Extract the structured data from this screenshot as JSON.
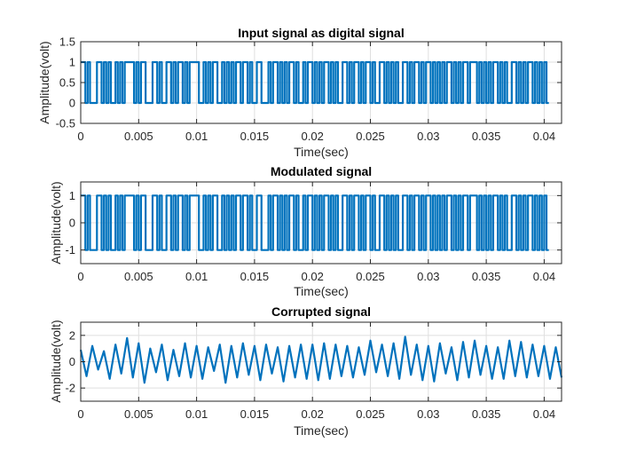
{
  "figure": {
    "background": "#ffffff"
  },
  "chart_data": [
    {
      "type": "line",
      "title": "Input signal as digital signal",
      "xlabel": "Time(sec)",
      "ylabel": "Amplitude(volt)",
      "xlim": [
        0,
        0.0415
      ],
      "ylim": [
        -0.5,
        1.5
      ],
      "xticks": [
        0,
        0.005,
        0.01,
        0.015,
        0.02,
        0.025,
        0.03,
        0.035,
        0.04
      ],
      "xtick_labels": [
        "0",
        "0.005",
        "0.01",
        "0.015",
        "0.02",
        "0.025",
        "0.03",
        "0.035",
        "0.04"
      ],
      "yticks": [
        -0.5,
        0,
        0.5,
        1,
        1.5
      ],
      "ytick_labels": [
        "-0.5",
        "0",
        "0.5",
        "1",
        "1.5"
      ],
      "grid": true,
      "color": "#0072BD",
      "series": [
        {
          "signal": "binary",
          "bit_period": 0.0002,
          "levels": [
            0,
            1
          ],
          "bits": "1101000110101001010111101011000110100110101101011110010101100101010110110100110001011010101101001011010101101010011010110101101001101010100110101101011010101011010101101110101010110101001101010110101010"
        }
      ]
    },
    {
      "type": "line",
      "title": "Modulated signal",
      "xlabel": "Time(sec)",
      "ylabel": "Amplitude(volt)",
      "xlim": [
        0,
        0.0415
      ],
      "ylim": [
        -1.5,
        1.5
      ],
      "xticks": [
        0,
        0.005,
        0.01,
        0.015,
        0.02,
        0.025,
        0.03,
        0.035,
        0.04
      ],
      "xtick_labels": [
        "0",
        "0.005",
        "0.01",
        "0.015",
        "0.02",
        "0.025",
        "0.03",
        "0.035",
        "0.04"
      ],
      "yticks": [
        -1,
        0,
        1
      ],
      "ytick_labels": [
        "-1",
        "0",
        "1"
      ],
      "grid": true,
      "color": "#0072BD",
      "series": [
        {
          "signal": "bipolar",
          "bit_period": 0.0002,
          "levels": [
            -1,
            1
          ],
          "bits": "1101000110101001010111101011000110100110101101011110010101100101010110110100110001011010101101001011010101101010011010110101101001101010100110101101011010101011010101101110101010110101001101010110101010"
        }
      ]
    },
    {
      "type": "line",
      "title": "Corrupted signal",
      "xlabel": "Time(sec)",
      "ylabel": "Amplitude(volt)",
      "xlim": [
        0,
        0.0415
      ],
      "ylim": [
        -3,
        3
      ],
      "xticks": [
        0,
        0.005,
        0.01,
        0.015,
        0.02,
        0.025,
        0.03,
        0.035,
        0.04
      ],
      "xtick_labels": [
        "0",
        "0.005",
        "0.01",
        "0.015",
        "0.02",
        "0.025",
        "0.03",
        "0.035",
        "0.04"
      ],
      "yticks": [
        -2,
        0,
        2
      ],
      "ytick_labels": [
        "-2",
        "0",
        "2"
      ],
      "grid": true,
      "color": "#0072BD",
      "series": [
        {
          "signal": "noisy",
          "x": [
            0,
            0.0005,
            0.001,
            0.0015,
            0.002,
            0.0025,
            0.003,
            0.0035,
            0.004,
            0.0045,
            0.005,
            0.0055,
            0.006,
            0.0065,
            0.007,
            0.0075,
            0.008,
            0.0085,
            0.009,
            0.0095,
            0.01,
            0.0105,
            0.011,
            0.0115,
            0.012,
            0.0125,
            0.013,
            0.0135,
            0.014,
            0.0145,
            0.015,
            0.0155,
            0.016,
            0.0165,
            0.017,
            0.0175,
            0.018,
            0.0185,
            0.019,
            0.0195,
            0.02,
            0.0205,
            0.021,
            0.0215,
            0.022,
            0.0225,
            0.023,
            0.0235,
            0.024,
            0.0245,
            0.025,
            0.0255,
            0.026,
            0.0265,
            0.027,
            0.0275,
            0.028,
            0.0285,
            0.029,
            0.0295,
            0.03,
            0.0305,
            0.031,
            0.0315,
            0.032,
            0.0325,
            0.033,
            0.0335,
            0.034,
            0.0345,
            0.035,
            0.0355,
            0.036,
            0.0365,
            0.037,
            0.0375,
            0.038,
            0.0385,
            0.039,
            0.0395,
            0.04,
            0.0405,
            0.041,
            0.0415
          ],
          "y": [
            0.9,
            -1.1,
            1.2,
            -0.6,
            0.8,
            -1.3,
            1.3,
            -0.9,
            1.8,
            -1.2,
            1.4,
            -1.6,
            1.0,
            -0.8,
            1.3,
            -1.4,
            0.9,
            -1.1,
            1.4,
            -1.2,
            1.2,
            -1.3,
            1.1,
            -0.7,
            1.3,
            -1.6,
            1.2,
            -1.2,
            1.4,
            -1.0,
            1.2,
            -1.4,
            1.3,
            -0.9,
            1.1,
            -1.5,
            1.2,
            -1.2,
            1.3,
            -1.3,
            1.3,
            -1.4,
            1.4,
            -1.3,
            1.3,
            -1.1,
            1.2,
            -1.2,
            1.1,
            -1.0,
            1.6,
            -0.8,
            1.3,
            -1.1,
            1.4,
            -1.3,
            1.9,
            -1.0,
            1.3,
            -1.4,
            1.2,
            -1.5,
            1.4,
            -0.9,
            1.1,
            -1.4,
            1.5,
            -1.2,
            1.6,
            -1.0,
            1.2,
            -1.3,
            1.1,
            -1.3,
            1.6,
            -1.1,
            1.5,
            -1.2,
            1.3,
            -1.1,
            1.2,
            -1.3,
            1.1,
            -1.2
          ]
        }
      ]
    }
  ]
}
